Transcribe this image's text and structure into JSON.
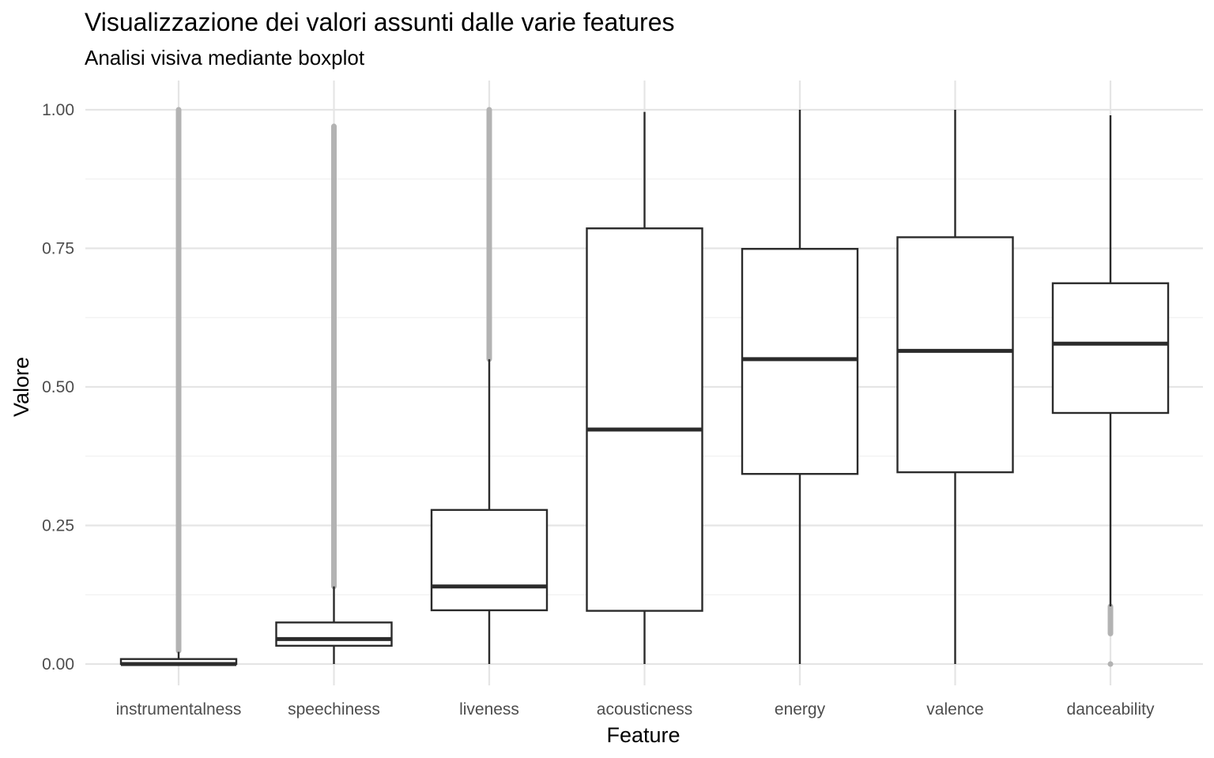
{
  "chart_data": {
    "type": "boxplot",
    "title": "Visualizzazione dei valori assunti dalle varie features",
    "subtitle": "Analisi visiva mediante boxplot",
    "xlabel": "Feature",
    "ylabel": "Valore",
    "ylim": [
      -0.04,
      1.05
    ],
    "yticks": [
      "0.00",
      "0.25",
      "0.50",
      "0.75",
      "1.00"
    ],
    "grid": true,
    "categories": [
      "instrumentalness",
      "speechiness",
      "liveness",
      "acousticness",
      "energy",
      "valence",
      "danceability"
    ],
    "boxes": [
      {
        "name": "instrumentalness",
        "lower_whisker": 0.0,
        "q1": 0.0,
        "median": 0.0,
        "q3": 0.009,
        "upper_whisker": 0.022,
        "outlier_ranges": [
          [
            0.024,
            1.0
          ]
        ],
        "outlier_points": []
      },
      {
        "name": "speechiness",
        "lower_whisker": 0.0,
        "q1": 0.033,
        "median": 0.045,
        "q3": 0.075,
        "upper_whisker": 0.14,
        "outlier_ranges": [
          [
            0.14,
            0.97
          ]
        ],
        "outlier_points": []
      },
      {
        "name": "liveness",
        "lower_whisker": 0.0,
        "q1": 0.097,
        "median": 0.14,
        "q3": 0.278,
        "upper_whisker": 0.55,
        "outlier_ranges": [
          [
            0.55,
            1.0
          ]
        ],
        "outlier_points": []
      },
      {
        "name": "acousticness",
        "lower_whisker": 0.0,
        "q1": 0.096,
        "median": 0.423,
        "q3": 0.786,
        "upper_whisker": 0.996,
        "outlier_ranges": [],
        "outlier_points": []
      },
      {
        "name": "energy",
        "lower_whisker": 0.0,
        "q1": 0.343,
        "median": 0.55,
        "q3": 0.749,
        "upper_whisker": 1.0,
        "outlier_ranges": [],
        "outlier_points": []
      },
      {
        "name": "valence",
        "lower_whisker": 0.0,
        "q1": 0.346,
        "median": 0.565,
        "q3": 0.77,
        "upper_whisker": 1.0,
        "outlier_ranges": [],
        "outlier_points": []
      },
      {
        "name": "danceability",
        "lower_whisker": 0.104,
        "q1": 0.453,
        "median": 0.578,
        "q3": 0.687,
        "upper_whisker": 0.99,
        "outlier_ranges": [
          [
            0.055,
            0.104
          ]
        ],
        "outlier_points": [
          0.0
        ]
      }
    ]
  }
}
